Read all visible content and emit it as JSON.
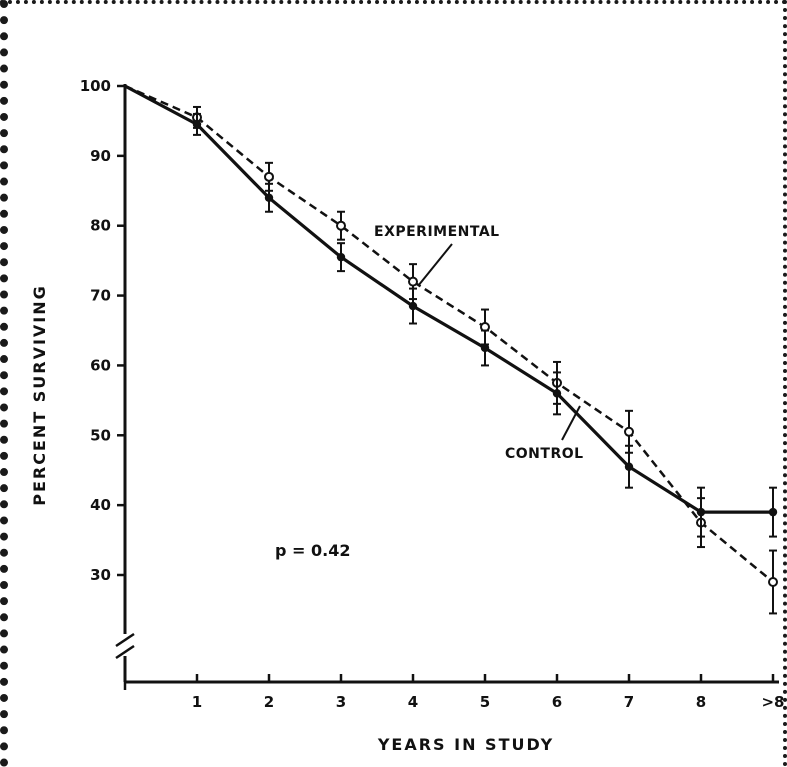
{
  "chart_data": {
    "type": "line",
    "x_categories": [
      "1",
      "2",
      "3",
      "4",
      "5",
      "6",
      "7",
      "8",
      ">8"
    ],
    "y_ticks": [
      "100",
      "90",
      "80",
      "70",
      "60",
      "50",
      "40",
      "30"
    ],
    "xlabel": "YEARS IN STUDY",
    "ylabel": "PERCENT SURVIVING",
    "ylim": [
      20,
      100
    ],
    "axis_break": "y",
    "grid": false,
    "series": [
      {
        "name": "EXPERIMENTAL",
        "style": "dashed",
        "marker": "open-circle",
        "x": [
          0,
          1,
          2,
          3,
          4,
          5,
          6,
          7,
          8,
          9
        ],
        "y": [
          100,
          95.5,
          87,
          80,
          72,
          65.5,
          57.5,
          50.5,
          37.5,
          29
        ],
        "err": [
          0,
          1.5,
          2,
          2,
          2.5,
          2.5,
          3,
          3,
          3.5,
          4.5
        ]
      },
      {
        "name": "CONTROL",
        "style": "solid",
        "marker": "filled-circle",
        "x": [
          0,
          1,
          2,
          3,
          4,
          5,
          6,
          7,
          8,
          9
        ],
        "y": [
          100,
          94.5,
          84,
          75.5,
          68.5,
          62.5,
          56,
          45.5,
          39,
          39
        ],
        "err": [
          0,
          1.5,
          2,
          2,
          2.5,
          2.5,
          3,
          3,
          3.5,
          3.5
        ]
      }
    ],
    "annotations": [
      {
        "text": "EXPERIMENTAL",
        "series": "EXPERIMENTAL"
      },
      {
        "text": "CONTROL",
        "series": "CONTROL"
      },
      {
        "text": "p = 0.42"
      }
    ],
    "colors": {
      "ink": "#111111",
      "background": "#ffffff"
    }
  }
}
